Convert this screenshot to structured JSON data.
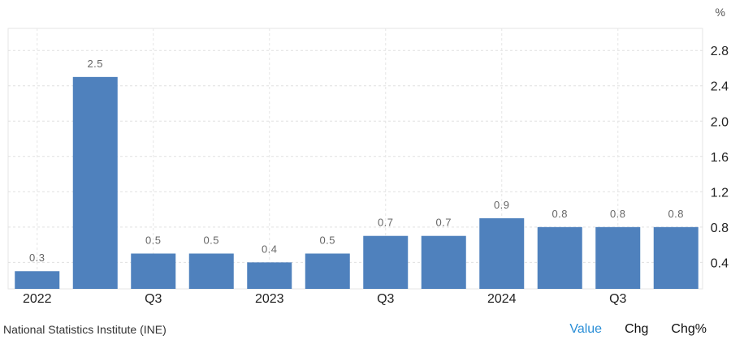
{
  "chart_data": {
    "type": "bar",
    "unit_label": "%",
    "categories": [
      "2022 Q1",
      "2022 Q2",
      "2022 Q3",
      "2022 Q4",
      "2023 Q1",
      "2023 Q2",
      "2023 Q3",
      "2023 Q4",
      "2024 Q1",
      "2024 Q2",
      "2024 Q3",
      "2024 Q4"
    ],
    "values": [
      0.3,
      2.5,
      0.5,
      0.5,
      0.4,
      0.5,
      0.7,
      0.7,
      0.9,
      0.8,
      0.8,
      0.8
    ],
    "value_labels": [
      "0.3",
      "2.5",
      "0.5",
      "0.5",
      "0.4",
      "0.5",
      "0.7",
      "0.7",
      "0.9",
      "0.8",
      "0.8",
      "0.8"
    ],
    "x_tick_labels": [
      "2022",
      "",
      "Q3",
      "",
      "2023",
      "",
      "Q3",
      "",
      "2024",
      "",
      "Q3",
      ""
    ],
    "y_ticks": [
      0.4,
      0.8,
      1.2,
      1.6,
      2.0,
      2.4,
      2.8
    ],
    "y_tick_labels": [
      "0.4",
      "0.8",
      "1.2",
      "1.6",
      "2.0",
      "2.4",
      "2.8"
    ],
    "ylim": [
      0.1,
      3.05
    ],
    "y_axis_side": "right",
    "grid": true,
    "bar_color": "#4f81bd"
  },
  "footer": {
    "source": "National Statistics Institute (INE)",
    "tabs": [
      {
        "label": "Value",
        "active": true
      },
      {
        "label": "Chg",
        "active": false
      },
      {
        "label": "Chg%",
        "active": false
      }
    ]
  },
  "colors": {
    "active_tab": "#2a8ed6",
    "text": "#333333"
  }
}
